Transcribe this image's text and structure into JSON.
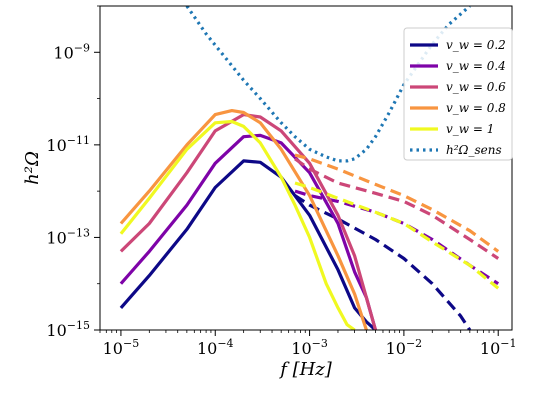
{
  "chart_data": {
    "type": "line",
    "xlabel": "f [Hz]",
    "ylabel": "h²Ω",
    "x_scale": "log",
    "y_scale": "log",
    "xlim": [
      6e-06,
      0.14
    ],
    "ylim": [
      1e-15,
      1e-08
    ],
    "x_ticks": [
      {
        "base": "10",
        "exp": "−5"
      },
      {
        "base": "10",
        "exp": "−4"
      },
      {
        "base": "10",
        "exp": "−3"
      },
      {
        "base": "10",
        "exp": "−2"
      },
      {
        "base": "10",
        "exp": "−1"
      }
    ],
    "y_ticks": [
      {
        "base": "10",
        "exp": "−9"
      },
      {
        "base": "10",
        "exp": "−11"
      },
      {
        "base": "10",
        "exp": "−13"
      },
      {
        "base": "10",
        "exp": "−15"
      }
    ],
    "grid": false,
    "legend_position": "top-right",
    "series": [
      {
        "name": "v_w = 0.2",
        "color": "#0d0887",
        "solid": {
          "x": [
            1e-05,
            2e-05,
            5e-05,
            0.0001,
            0.0002,
            0.0003,
            0.0005,
            0.001,
            0.002,
            0.003,
            0.004,
            0.005
          ],
          "y": [
            3e-15,
            1.5e-14,
            1.5e-13,
            1.2e-12,
            4.5e-12,
            4.2e-12,
            2e-12,
            3e-13,
            2e-14,
            3e-15,
            1.5e-15,
            1e-15
          ]
        },
        "dashed": {
          "x": [
            0.0007,
            0.001,
            0.002,
            0.005,
            0.01,
            0.02,
            0.04,
            0.05
          ],
          "y": [
            8e-13,
            5e-13,
            2.5e-13,
            9e-14,
            3.5e-14,
            1e-14,
            2e-15,
            1e-15
          ]
        }
      },
      {
        "name": "v_w = 0.4",
        "color": "#7e03a8",
        "solid": {
          "x": [
            1e-05,
            2e-05,
            5e-05,
            0.0001,
            0.0002,
            0.0003,
            0.0005,
            0.001,
            0.002,
            0.003,
            0.004,
            0.005
          ],
          "y": [
            1e-14,
            5e-14,
            5e-13,
            4e-12,
            1.5e-11,
            1.6e-11,
            1.1e-11,
            2.5e-12,
            2e-13,
            1.8e-14,
            5e-15,
            1e-15
          ]
        },
        "dashed": {
          "x": [
            0.0007,
            0.001,
            0.002,
            0.005,
            0.01,
            0.02,
            0.05,
            0.1
          ],
          "y": [
            1e-12,
            8e-13,
            6e-13,
            3.5e-13,
            2e-13,
            9e-14,
            2.5e-14,
            1e-14
          ]
        }
      },
      {
        "name": "v_w = 0.6",
        "color": "#cc4778",
        "solid": {
          "x": [
            1e-05,
            2e-05,
            5e-05,
            0.0001,
            0.0002,
            0.0003,
            0.0005,
            0.001,
            0.002,
            0.003,
            0.004,
            0.005
          ],
          "y": [
            5e-14,
            2e-13,
            2.5e-12,
            2e-11,
            4.5e-11,
            4e-11,
            2e-11,
            4e-12,
            3e-13,
            4e-14,
            5e-15,
            1e-15
          ]
        },
        "dashed": {
          "x": [
            0.0007,
            0.001,
            0.002,
            0.005,
            0.01,
            0.02,
            0.05,
            0.1
          ],
          "y": [
            5e-12,
            3e-12,
            1.5e-12,
            9e-13,
            6e-13,
            3e-13,
            9e-14,
            3.5e-14
          ]
        }
      },
      {
        "name": "v_w = 0.8",
        "color": "#f89540",
        "solid": {
          "x": [
            1e-05,
            2e-05,
            5e-05,
            0.0001,
            0.00015,
            0.0002,
            0.0003,
            0.0005,
            0.001,
            0.002,
            0.003,
            0.004
          ],
          "y": [
            2e-13,
            1e-12,
            1e-11,
            4.5e-11,
            5.5e-11,
            5e-11,
            3e-11,
            8e-12,
            8e-13,
            4e-14,
            6e-15,
            1e-15
          ]
        },
        "dashed": {
          "x": [
            0.0007,
            0.001,
            0.002,
            0.005,
            0.01,
            0.02,
            0.05,
            0.1
          ],
          "y": [
            6e-12,
            5e-12,
            3e-12,
            1.4e-12,
            8e-13,
            4e-13,
            1.4e-13,
            5e-14
          ]
        }
      },
      {
        "name": "v_w = 1",
        "color": "#f0f921",
        "solid": {
          "x": [
            1e-05,
            2e-05,
            5e-05,
            0.0001,
            0.00015,
            0.0002,
            0.0003,
            0.0005,
            0.0007,
            0.001,
            0.0015,
            0.002,
            0.0025,
            0.003
          ],
          "y": [
            1.2e-13,
            7e-13,
            8e-12,
            3e-11,
            3.2e-11,
            2.5e-11,
            1.1e-11,
            2e-12,
            5e-13,
            1e-13,
            1e-14,
            3e-15,
            1.3e-15,
            1e-15
          ]
        },
        "dashed": {
          "x": [
            0.0007,
            0.001,
            0.002,
            0.005,
            0.01,
            0.02,
            0.05,
            0.1
          ],
          "y": [
            1.5e-12,
            1.2e-12,
            7e-13,
            3.5e-13,
            2e-13,
            8e-14,
            2.5e-14,
            8e-15
          ]
        }
      },
      {
        "name": "h²Ω_sens",
        "color": "#1f77b4",
        "dotted": {
          "x": [
            5e-05,
            8e-05,
            0.00012,
            0.0002,
            0.0003,
            0.0005,
            0.0007,
            0.001,
            0.0015,
            0.002,
            0.0025,
            0.003,
            0.004,
            0.005,
            0.007,
            0.01,
            0.02,
            0.03,
            0.05
          ],
          "y": [
            1e-08,
            2.5e-09,
            9e-10,
            2.5e-10,
            1e-10,
            3e-11,
            1.5e-11,
            8e-12,
            5.5e-12,
            4.5e-12,
            4.5e-12,
            5e-12,
            8e-12,
            1.5e-11,
            5e-11,
            2e-10,
            1.5e-09,
            4e-09,
            1e-08
          ]
        }
      }
    ]
  }
}
